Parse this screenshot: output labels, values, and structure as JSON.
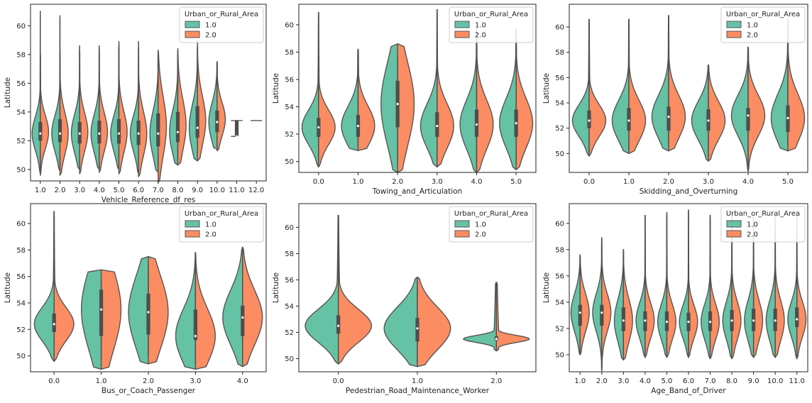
{
  "figure": {
    "legend_title": "Urban_or_Rural_Area",
    "hue_levels": [
      "1.0",
      "2.0"
    ],
    "colors": {
      "left": "#66c2a5",
      "right": "#fc8d62",
      "outline": "#555555",
      "box": "#4d4d4d",
      "median": "#ffffff"
    }
  },
  "chart_data": [
    {
      "type": "violin",
      "xlabel": "Vehicle_Reference_df_res",
      "ylabel": "Latitude",
      "categories": [
        "1.0",
        "2.0",
        "3.0",
        "4.0",
        "5.0",
        "6.0",
        "7.0",
        "8.0",
        "9.0",
        "10.0",
        "11.0",
        "12.0"
      ],
      "yticks": [
        50,
        52,
        54,
        56,
        58,
        60
      ],
      "ylim": [
        49.2,
        61.5
      ],
      "legend": "top-right",
      "series": [
        {
          "name": "1.0",
          "min": [
            49.7,
            49.9,
            50.0,
            50.0,
            50.0,
            49.7,
            49.8,
            50.3,
            50.6,
            51.4,
            52.3,
            null
          ],
          "q1": [
            52.0,
            51.9,
            51.8,
            51.8,
            51.8,
            51.8,
            51.7,
            51.9,
            52.2,
            52.6,
            52.3,
            null
          ],
          "median": [
            52.5,
            52.5,
            52.5,
            52.5,
            52.5,
            52.5,
            52.5,
            52.6,
            52.9,
            53.3,
            52.3,
            null
          ],
          "q3": [
            53.3,
            53.3,
            53.3,
            53.3,
            53.2,
            53.2,
            53.5,
            53.6,
            54.0,
            54.1,
            52.3,
            null
          ],
          "max": [
            61.0,
            60.7,
            58.6,
            58.6,
            58.6,
            58.5,
            58.1,
            58.3,
            58.5,
            57.5,
            52.3,
            null
          ]
        },
        {
          "name": "2.0",
          "min": [
            49.6,
            49.6,
            49.7,
            49.8,
            49.7,
            49.5,
            49.1,
            50.3,
            50.6,
            51.3,
            53.4,
            53.4
          ],
          "q1": [
            52.0,
            51.9,
            51.8,
            51.9,
            51.9,
            51.7,
            51.6,
            52.0,
            52.5,
            52.8,
            53.4,
            53.4
          ],
          "median": [
            52.6,
            52.5,
            52.6,
            52.6,
            52.6,
            52.5,
            53.0,
            53.1,
            53.4,
            53.5,
            53.4,
            53.4
          ],
          "q3": [
            53.3,
            53.5,
            53.3,
            53.4,
            53.5,
            53.4,
            53.9,
            54.0,
            54.4,
            54.1,
            53.4,
            53.4
          ],
          "max": [
            58.0,
            58.2,
            58.3,
            58.4,
            58.9,
            58.9,
            58.3,
            58.4,
            59.0,
            57.5,
            53.4,
            53.4
          ]
        }
      ]
    },
    {
      "type": "violin",
      "xlabel": "Towing_and_Articulation",
      "ylabel": "Latitude",
      "categories": [
        "0.0",
        "1.0",
        "2.0",
        "3.0",
        "4.0",
        "5.0"
      ],
      "yticks": [
        50,
        52,
        54,
        56,
        58,
        60
      ],
      "ylim": [
        49.2,
        61.5
      ],
      "legend": "top-right",
      "series": [
        {
          "name": "1.0",
          "min": [
            49.6,
            50.8,
            49.2,
            49.6,
            49.2,
            49.4
          ],
          "q1": [
            51.8,
            51.8,
            52.5,
            51.8,
            51.8,
            51.8
          ],
          "median": [
            52.5,
            52.6,
            54.2,
            52.6,
            52.7,
            52.8
          ],
          "q3": [
            53.2,
            53.4,
            55.9,
            53.6,
            53.8,
            53.8
          ],
          "max": [
            60.9,
            58.2,
            58.6,
            61.1,
            59.7,
            59.7
          ]
        },
        {
          "name": "2.0",
          "min": [
            49.6,
            50.8,
            49.2,
            49.6,
            49.2,
            49.4
          ],
          "q1": [
            51.8,
            51.8,
            52.5,
            51.8,
            51.8,
            51.8
          ],
          "median": [
            52.5,
            52.6,
            54.2,
            52.6,
            52.7,
            52.8
          ],
          "q3": [
            53.2,
            53.4,
            55.9,
            53.6,
            53.8,
            53.8
          ],
          "max": [
            60.9,
            58.2,
            58.6,
            61.1,
            59.7,
            59.7
          ]
        }
      ]
    },
    {
      "type": "violin",
      "xlabel": "Skidding_and_Overturning",
      "ylabel": "Latitude",
      "categories": [
        "0.0",
        "1.0",
        "2.0",
        "3.0",
        "4.0",
        "5.0"
      ],
      "yticks": [
        50,
        52,
        54,
        56,
        58,
        60
      ],
      "ylim": [
        48.5,
        61.8
      ],
      "legend": "top-right",
      "series": [
        {
          "name": "1.0",
          "min": [
            49.8,
            50.0,
            50.2,
            49.4,
            48.6,
            50.2
          ],
          "q1": [
            52.0,
            51.8,
            51.8,
            51.8,
            51.8,
            51.7
          ],
          "median": [
            52.6,
            52.6,
            52.9,
            52.6,
            53.0,
            52.8
          ],
          "q3": [
            53.4,
            53.6,
            53.7,
            53.5,
            53.6,
            53.8
          ],
          "max": [
            60.6,
            60.6,
            60.9,
            57.0,
            58.4,
            60.6
          ]
        },
        {
          "name": "2.0",
          "min": [
            49.8,
            50.0,
            50.2,
            49.4,
            48.6,
            50.2
          ],
          "q1": [
            52.0,
            51.8,
            51.8,
            51.8,
            51.8,
            51.7
          ],
          "median": [
            52.6,
            52.6,
            52.9,
            52.6,
            53.0,
            52.8
          ],
          "q3": [
            53.4,
            53.6,
            53.7,
            53.5,
            53.6,
            53.8
          ],
          "max": [
            60.6,
            60.6,
            60.9,
            57.0,
            58.4,
            60.6
          ]
        }
      ]
    },
    {
      "type": "violin",
      "xlabel": "Bus_or_Coach_Passenger",
      "ylabel": "Latitude",
      "categories": [
        "0.0",
        "1.0",
        "2.0",
        "3.0",
        "4.0"
      ],
      "yticks": [
        50,
        52,
        54,
        56,
        58,
        60
      ],
      "ylim": [
        48.8,
        61.5
      ],
      "legend": "top-right",
      "series": [
        {
          "name": "1.0",
          "min": [
            49.6,
            49.0,
            49.4,
            49.0,
            49.2
          ],
          "q1": [
            51.8,
            51.5,
            51.6,
            51.2,
            51.5
          ],
          "median": [
            52.4,
            53.5,
            53.3,
            51.5,
            52.9
          ],
          "q3": [
            53.2,
            55.0,
            54.7,
            53.5,
            53.8
          ],
          "max": [
            60.9,
            56.5,
            57.5,
            57.8,
            58.2
          ]
        },
        {
          "name": "2.0",
          "min": [
            49.6,
            49.0,
            49.4,
            49.0,
            49.2
          ],
          "q1": [
            51.8,
            51.5,
            51.6,
            51.2,
            51.5
          ],
          "median": [
            52.4,
            53.5,
            53.3,
            51.5,
            52.9
          ],
          "q3": [
            53.2,
            55.0,
            54.7,
            53.5,
            53.8
          ],
          "max": [
            60.9,
            56.5,
            57.5,
            57.8,
            58.2
          ]
        }
      ]
    },
    {
      "type": "violin",
      "xlabel": "Pedestrian_Road_Maintenance_Worker",
      "ylabel": "Latitude",
      "categories": [
        "0.0",
        "1.0",
        "2.0"
      ],
      "yticks": [
        50,
        52,
        54,
        56,
        58,
        60
      ],
      "ylim": [
        49.0,
        61.8
      ],
      "legend": "top-right",
      "series": [
        {
          "name": "1.0",
          "min": [
            49.6,
            49.4,
            50.6
          ],
          "q1": [
            51.9,
            51.3,
            51.4
          ],
          "median": [
            52.5,
            52.3,
            51.5
          ],
          "q3": [
            53.3,
            53.1,
            51.7
          ],
          "max": [
            60.9,
            56.2,
            55.8
          ]
        },
        {
          "name": "2.0",
          "min": [
            49.6,
            49.4,
            50.6
          ],
          "q1": [
            51.9,
            51.3,
            51.4
          ],
          "median": [
            52.5,
            52.3,
            51.5
          ],
          "q3": [
            53.3,
            53.1,
            51.7
          ],
          "max": [
            60.9,
            56.2,
            55.8
          ]
        }
      ]
    },
    {
      "type": "violin",
      "xlabel": "Age_Band_of_Driver",
      "ylabel": "Latitude",
      "categories": [
        "1.0",
        "2.0",
        "3.0",
        "4.0",
        "5.0",
        "6.0",
        "7.0",
        "8.0",
        "9.0",
        "10.0",
        "11.0"
      ],
      "yticks": [
        50,
        52,
        54,
        56,
        58,
        60
      ],
      "ylim": [
        48.7,
        61.5
      ],
      "legend": "top-right",
      "series": [
        {
          "name": "1.0",
          "min": [
            50.0,
            48.8,
            49.6,
            49.8,
            49.8,
            49.8,
            49.7,
            49.7,
            49.8,
            49.8,
            49.7
          ],
          "q1": [
            52.2,
            52.2,
            51.8,
            51.8,
            51.8,
            51.8,
            51.8,
            51.8,
            51.8,
            51.8,
            52.1
          ],
          "median": [
            53.2,
            53.2,
            52.6,
            52.6,
            52.5,
            52.5,
            52.5,
            52.6,
            52.6,
            52.6,
            52.7
          ],
          "q3": [
            53.8,
            53.8,
            53.6,
            53.3,
            53.3,
            53.2,
            53.3,
            53.4,
            53.5,
            53.5,
            53.6
          ],
          "max": [
            57.6,
            58.9,
            58.0,
            60.6,
            60.8,
            61.0,
            60.6,
            60.6,
            60.6,
            60.6,
            60.6
          ]
        },
        {
          "name": "2.0",
          "min": [
            50.0,
            48.8,
            49.6,
            49.8,
            49.8,
            49.8,
            49.7,
            49.7,
            49.8,
            49.8,
            49.7
          ],
          "q1": [
            52.2,
            52.2,
            51.8,
            51.8,
            51.8,
            51.8,
            51.8,
            51.8,
            51.8,
            51.8,
            52.1
          ],
          "median": [
            53.2,
            53.2,
            52.6,
            52.6,
            52.5,
            52.5,
            52.5,
            52.6,
            52.6,
            52.6,
            52.7
          ],
          "q3": [
            53.8,
            53.8,
            53.6,
            53.3,
            53.3,
            53.2,
            53.3,
            53.4,
            53.5,
            53.5,
            53.6
          ],
          "max": [
            57.6,
            58.9,
            58.0,
            60.6,
            60.8,
            61.0,
            60.6,
            60.6,
            60.6,
            60.6,
            60.6
          ]
        }
      ]
    }
  ]
}
